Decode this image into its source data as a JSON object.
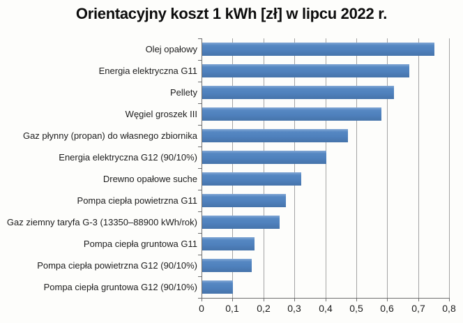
{
  "chart_data": {
    "type": "bar",
    "orientation": "horizontal",
    "title": "Orientacyjny koszt 1 kWh [zł] w lipcu 2022 r.",
    "categories": [
      "Olej opałowy",
      "Energia elektryczna G11",
      "Pellety",
      "Węgiel groszek III",
      "Gaz płynny (propan) do własnego zbiornika",
      "Energia elektryczna G12 (90/10%)",
      "Drewno opałowe suche",
      "Pompa ciepła powietrzna G11",
      "Gaz ziemny taryfa G-3 (13350–88900 kWh/rok)",
      "Pompa ciepła gruntowa G11",
      "Pompa ciepła powietrzna G12 (90/10%)",
      "Pompa ciepła gruntowa G12 (90/10%)"
    ],
    "values": [
      0.75,
      0.67,
      0.62,
      0.58,
      0.47,
      0.4,
      0.32,
      0.27,
      0.25,
      0.17,
      0.16,
      0.1
    ],
    "xlabel": "",
    "ylabel": "",
    "xlim": [
      0,
      0.8
    ],
    "x_ticks": [
      0,
      0.1,
      0.2,
      0.3,
      0.4,
      0.5,
      0.6,
      0.7,
      0.8
    ],
    "x_tick_labels": [
      "0",
      "0,1",
      "0,2",
      "0,3",
      "0,4",
      "0,5",
      "0,6",
      "0,7",
      "0,8"
    ],
    "grid": "vertical",
    "legend": "none",
    "bar_color": "#4f81bd",
    "gridline_color": "#a3a3a3",
    "axis_color": "#6e6e6e",
    "text_color": "#1c1c1c",
    "background_color": "#fdfdfb"
  }
}
